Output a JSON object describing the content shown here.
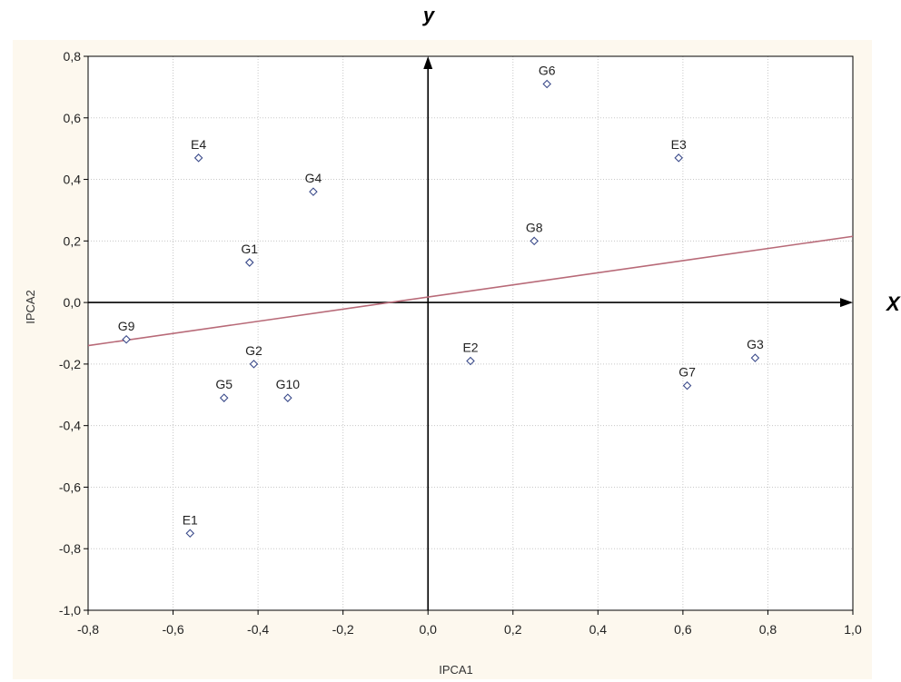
{
  "chart_data": {
    "type": "scatter",
    "title": "",
    "xlabel": "IPCA1",
    "ylabel": "IPCA2",
    "xlim": [
      -0.8,
      1.0
    ],
    "ylim": [
      -1.0,
      0.8
    ],
    "x_ticks": [
      "-0,8",
      "-0,6",
      "-0,4",
      "-0,2",
      "0,0",
      "0,2",
      "0,4",
      "0,6",
      "0,8",
      "1,0"
    ],
    "y_ticks": [
      "-1,0",
      "-0,8",
      "-0,6",
      "-0,4",
      "-0,2",
      "0,0",
      "0,2",
      "0,4",
      "0,6",
      "0,8"
    ],
    "x_tick_values": [
      -0.8,
      -0.6,
      -0.4,
      -0.2,
      0.0,
      0.2,
      0.4,
      0.6,
      0.8,
      1.0
    ],
    "y_tick_values": [
      -1.0,
      -0.8,
      -0.6,
      -0.4,
      -0.2,
      0.0,
      0.2,
      0.4,
      0.6,
      0.8
    ],
    "grid": true,
    "axis_x_letter": "X",
    "axis_y_letter": "y",
    "points": [
      {
        "label": "G6",
        "x": 0.28,
        "y": 0.71
      },
      {
        "label": "E4",
        "x": -0.54,
        "y": 0.47
      },
      {
        "label": "E3",
        "x": 0.59,
        "y": 0.47
      },
      {
        "label": "G4",
        "x": -0.27,
        "y": 0.36
      },
      {
        "label": "G8",
        "x": 0.25,
        "y": 0.2
      },
      {
        "label": "G1",
        "x": -0.42,
        "y": 0.13
      },
      {
        "label": "G9",
        "x": -0.71,
        "y": -0.12
      },
      {
        "label": "E2",
        "x": 0.1,
        "y": -0.19
      },
      {
        "label": "G3",
        "x": 0.77,
        "y": -0.18
      },
      {
        "label": "G2",
        "x": -0.41,
        "y": -0.2
      },
      {
        "label": "G7",
        "x": 0.61,
        "y": -0.27
      },
      {
        "label": "G5",
        "x": -0.48,
        "y": -0.31
      },
      {
        "label": "G10",
        "x": -0.33,
        "y": -0.31
      },
      {
        "label": "E1",
        "x": -0.56,
        "y": -0.75
      }
    ],
    "regression_line": {
      "color": "#b86a78",
      "start": {
        "x": -0.8,
        "y": -0.14
      },
      "end": {
        "x": 1.0,
        "y": 0.215
      }
    },
    "colors": {
      "background": "#fdf8ee",
      "plot": "#ffffff",
      "grid": "#c8c8c8",
      "marker": "#3a4a8a",
      "axis": "#000000"
    }
  }
}
